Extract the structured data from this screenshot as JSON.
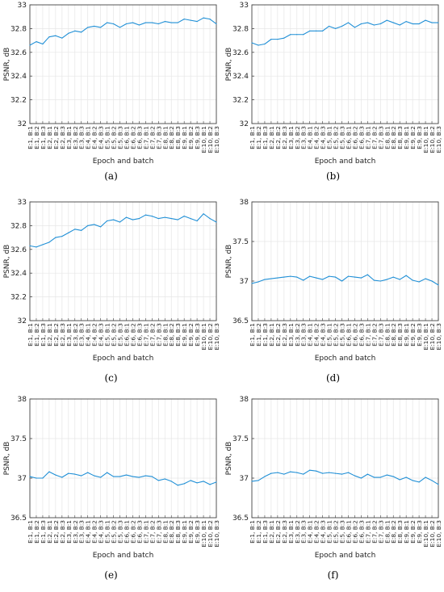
{
  "epoch_batch_labels": [
    "E:1, B:1",
    "E:1, B:2",
    "E:1, B:3",
    "E:2, B:1",
    "E:2, B:2",
    "E:2, B:3",
    "E:3, B:1",
    "E:3, B:2",
    "E:3, B:3",
    "E:4, B:1",
    "E:4, B:2",
    "E:4, B:3",
    "E:5, B:1",
    "E:5, B:2",
    "E:5, B:3",
    "E:6, B:1",
    "E:6, B:2",
    "E:6, B:3",
    "E:7, B:1",
    "E:7, B:2",
    "E:7, B:3",
    "E:8, B:1",
    "E:8, B:2",
    "E:8, B:3",
    "E:9, B:1",
    "E:9, B:2",
    "E:9, B:3",
    "E:10, B:1",
    "E:10, B:2",
    "E:10, B:3"
  ],
  "line_color": "#1f8fd6",
  "chart_data": [
    {
      "type": "line",
      "caption": "(a)",
      "xlabel": "Epoch and batch",
      "ylabel": "PSNR, dB",
      "ylim": [
        32,
        33
      ],
      "yticks": [
        32,
        32.2,
        32.4,
        32.6,
        32.8,
        33
      ],
      "grid": true,
      "values": [
        32.66,
        32.69,
        32.67,
        32.73,
        32.74,
        32.72,
        32.76,
        32.78,
        32.77,
        32.81,
        32.82,
        32.81,
        32.85,
        32.84,
        32.81,
        32.84,
        32.85,
        32.83,
        32.85,
        32.85,
        32.84,
        32.86,
        32.85,
        32.85,
        32.88,
        32.87,
        32.86,
        32.89,
        32.88,
        32.84
      ]
    },
    {
      "type": "line",
      "caption": "(b)",
      "xlabel": "Epoch and batch",
      "ylabel": "PSNR, dB",
      "ylim": [
        32,
        33
      ],
      "yticks": [
        32,
        32.2,
        32.4,
        32.6,
        32.8,
        33
      ],
      "grid": true,
      "values": [
        32.68,
        32.66,
        32.67,
        32.71,
        32.71,
        32.72,
        32.75,
        32.75,
        32.75,
        32.78,
        32.78,
        32.78,
        32.82,
        32.8,
        32.82,
        32.85,
        32.81,
        32.84,
        32.85,
        32.83,
        32.84,
        32.87,
        32.85,
        32.83,
        32.86,
        32.84,
        32.84,
        32.87,
        32.85,
        32.85
      ]
    },
    {
      "type": "line",
      "caption": "(c)",
      "xlabel": "Epoch and batch",
      "ylabel": "PSNR, dB",
      "ylim": [
        32,
        33
      ],
      "yticks": [
        32,
        32.2,
        32.4,
        32.6,
        32.8,
        33
      ],
      "grid": true,
      "values": [
        32.63,
        32.62,
        32.64,
        32.66,
        32.7,
        32.71,
        32.74,
        32.77,
        32.76,
        32.8,
        32.81,
        32.79,
        32.84,
        32.85,
        32.83,
        32.87,
        32.85,
        32.86,
        32.89,
        32.88,
        32.86,
        32.87,
        32.86,
        32.85,
        32.88,
        32.86,
        32.84,
        32.9,
        32.86,
        32.83
      ]
    },
    {
      "type": "line",
      "caption": "(d)",
      "xlabel": "Epoch and batch",
      "ylabel": "PSNR, dB",
      "ylim": [
        36.5,
        38
      ],
      "yticks": [
        36.5,
        37,
        37.5,
        38
      ],
      "ytick_labels": [
        "36.5",
        "37",
        "37.5",
        "38"
      ],
      "grid": true,
      "values": [
        36.97,
        36.99,
        37.02,
        37.03,
        37.04,
        37.05,
        37.06,
        37.05,
        37.01,
        37.06,
        37.04,
        37.02,
        37.06,
        37.05,
        37.0,
        37.06,
        37.05,
        37.04,
        37.08,
        37.01,
        37.0,
        37.02,
        37.05,
        37.02,
        37.07,
        37.01,
        36.99,
        37.03,
        37.0,
        36.95
      ]
    },
    {
      "type": "line",
      "caption": "(e)",
      "xlabel": "Epoch and batch",
      "ylabel": "PSNR, dB",
      "ylim": [
        36.5,
        38
      ],
      "yticks": [
        36.5,
        37,
        37.5,
        38
      ],
      "ytick_labels": [
        "36.5",
        "37",
        "37.5",
        "38"
      ],
      "grid": true,
      "values": [
        37.02,
        37.0,
        37.0,
        37.08,
        37.04,
        37.01,
        37.06,
        37.05,
        37.03,
        37.07,
        37.03,
        37.01,
        37.07,
        37.02,
        37.02,
        37.04,
        37.02,
        37.01,
        37.03,
        37.02,
        36.97,
        36.99,
        36.96,
        36.91,
        36.93,
        36.97,
        36.94,
        36.96,
        36.92,
        36.95
      ]
    },
    {
      "type": "line",
      "caption": "(f)",
      "xlabel": "Epoch and batch",
      "ylabel": "PSNR, dB",
      "ylim": [
        36.5,
        38
      ],
      "yticks": [
        36.5,
        37,
        37.5,
        38
      ],
      "ytick_labels": [
        "36.5",
        "37",
        "37.5",
        "38"
      ],
      "grid": true,
      "values": [
        36.96,
        36.97,
        37.02,
        37.06,
        37.07,
        37.05,
        37.08,
        37.07,
        37.05,
        37.1,
        37.09,
        37.06,
        37.07,
        37.06,
        37.05,
        37.07,
        37.03,
        37.0,
        37.05,
        37.01,
        37.01,
        37.04,
        37.02,
        36.98,
        37.01,
        36.97,
        36.95,
        37.01,
        36.97,
        36.92
      ]
    }
  ]
}
